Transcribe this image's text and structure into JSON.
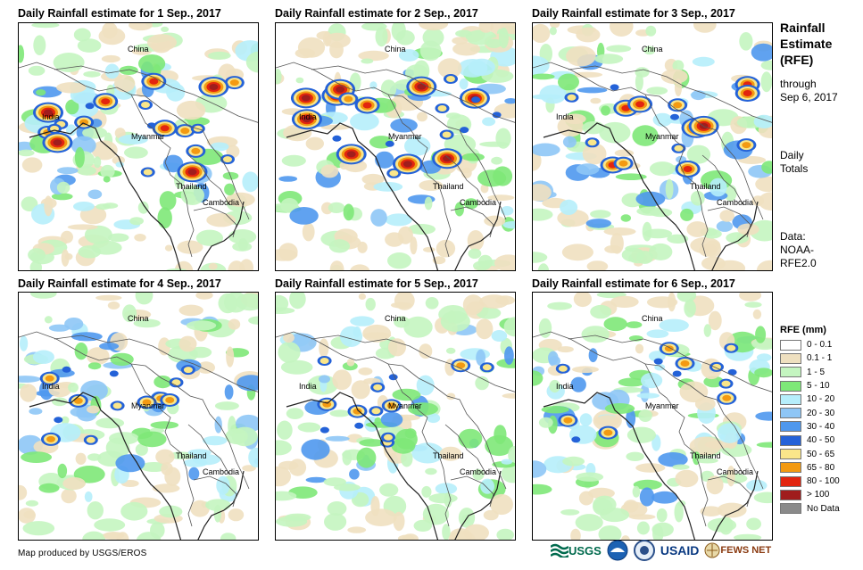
{
  "panels": [
    {
      "title": "Daily Rainfall estimate for 1 Sep., 2017",
      "intensity": "very-high"
    },
    {
      "title": "Daily Rainfall estimate for 2 Sep., 2017",
      "intensity": "very-high"
    },
    {
      "title": "Daily Rainfall estimate for 3 Sep., 2017",
      "intensity": "high"
    },
    {
      "title": "Daily Rainfall estimate for 4 Sep., 2017",
      "intensity": "medium"
    },
    {
      "title": "Daily Rainfall estimate for 5 Sep., 2017",
      "intensity": "medium"
    },
    {
      "title": "Daily Rainfall estimate for 6 Sep., 2017",
      "intensity": "medium"
    }
  ],
  "place_labels": {
    "china": "China",
    "india": "India",
    "myanmar": "Myanmar",
    "thailand": "Thailand",
    "cambodia": "Cambodia"
  },
  "sidebar": {
    "title_line1": "Rainfall",
    "title_line2": "Estimate",
    "title_line3": "(RFE)",
    "sub_line1": "through",
    "sub_line2": "Sep 6, 2017",
    "daily_line1": "Daily",
    "daily_line2": "Totals",
    "data_line1": "Data:",
    "data_line2": "NOAA-",
    "data_line3": "RFE2.0"
  },
  "legend": {
    "title": "RFE (mm)",
    "classes": [
      {
        "label": "0 - 0.1",
        "color": "#ffffff"
      },
      {
        "label": "0.1 - 1",
        "color": "#efe0c0"
      },
      {
        "label": "1 - 5",
        "color": "#c4f5c0"
      },
      {
        "label": "5 - 10",
        "color": "#7ee878"
      },
      {
        "label": "10 - 20",
        "color": "#b6eefb"
      },
      {
        "label": "20 - 30",
        "color": "#8ec6f6"
      },
      {
        "label": "30 - 40",
        "color": "#4f98ee"
      },
      {
        "label": "40 - 50",
        "color": "#2462d8"
      },
      {
        "label": "50 - 65",
        "color": "#fae68a"
      },
      {
        "label": "65 - 80",
        "color": "#f39a12"
      },
      {
        "label": "80 - 100",
        "color": "#e2250f"
      },
      {
        "label": "> 100",
        "color": "#a01d1d"
      },
      {
        "label": "No Data",
        "color": "#8a8a8a"
      }
    ]
  },
  "footer": {
    "credit": "Map produced by USGS/EROS"
  },
  "logos": {
    "usgs": "USGS",
    "usaid": "USAID",
    "fewsnet": "FEWS NET"
  }
}
